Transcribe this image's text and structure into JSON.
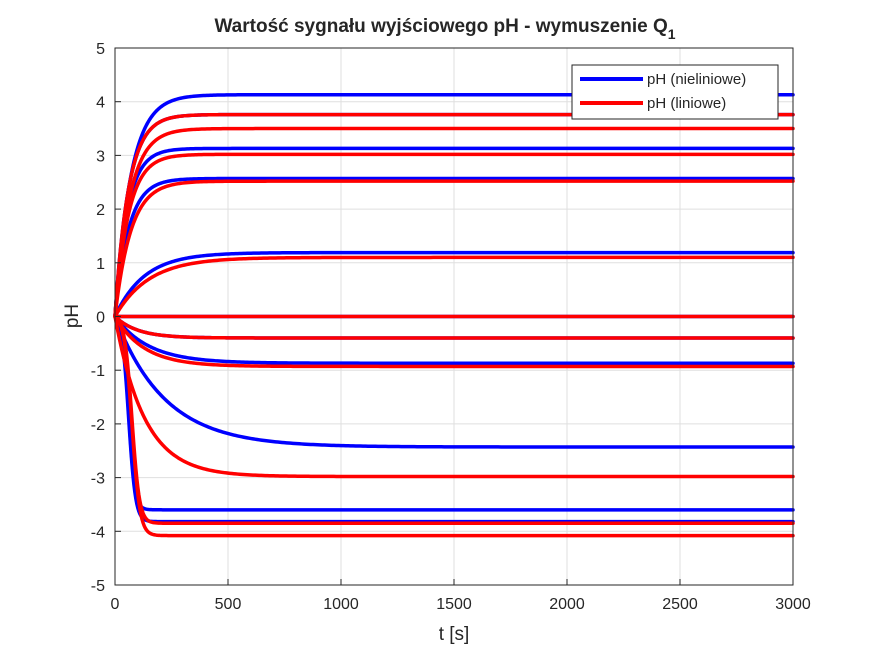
{
  "chart_data": {
    "type": "line",
    "title": "Wartość sygnału wyjściowego pH - wymuszenie Q",
    "title_subscript": "1",
    "xlabel": "t [s]",
    "ylabel": "pH",
    "xlim": [
      0,
      3000
    ],
    "ylim": [
      -5,
      5
    ],
    "xticks": [
      "0",
      "500",
      "1000",
      "1500",
      "2000",
      "2500",
      "3000"
    ],
    "yticks": [
      "5",
      "4",
      "3",
      "2",
      "1",
      "0",
      "-1",
      "-2",
      "-3",
      "-4",
      "-5"
    ],
    "grid": true,
    "legend_position": "top-right",
    "legend": [
      "pH (nieliniowe)",
      "pH (liniowe)"
    ],
    "colors": {
      "nonlinear": "#0000ff",
      "linear": "#ff0000"
    },
    "series": [
      {
        "name": "pH (nieliniowe)",
        "color": "#0000ff",
        "steady_states": [
          4.13,
          3.76,
          3.13,
          2.57,
          1.19,
          0.0,
          -0.4,
          -0.87,
          -2.43,
          -3.6,
          -3.82
        ],
        "time_constants": [
          70,
          60,
          55,
          60,
          130,
          30,
          100,
          150,
          220,
          25,
          28
        ],
        "delays": [
          0,
          0,
          0,
          0,
          0,
          0,
          0,
          0,
          0,
          60,
          60
        ]
      },
      {
        "name": "pH (liniowe)",
        "color": "#ff0000",
        "steady_states": [
          3.76,
          3.5,
          3.02,
          2.52,
          1.1,
          0.0,
          -0.4,
          -0.93,
          -2.98,
          -3.85,
          -4.08
        ],
        "time_constants": [
          60,
          65,
          60,
          70,
          150,
          30,
          100,
          130,
          130,
          30,
          32
        ],
        "delays": [
          0,
          0,
          0,
          0,
          0,
          0,
          0,
          0,
          0,
          75,
          75
        ]
      }
    ]
  }
}
